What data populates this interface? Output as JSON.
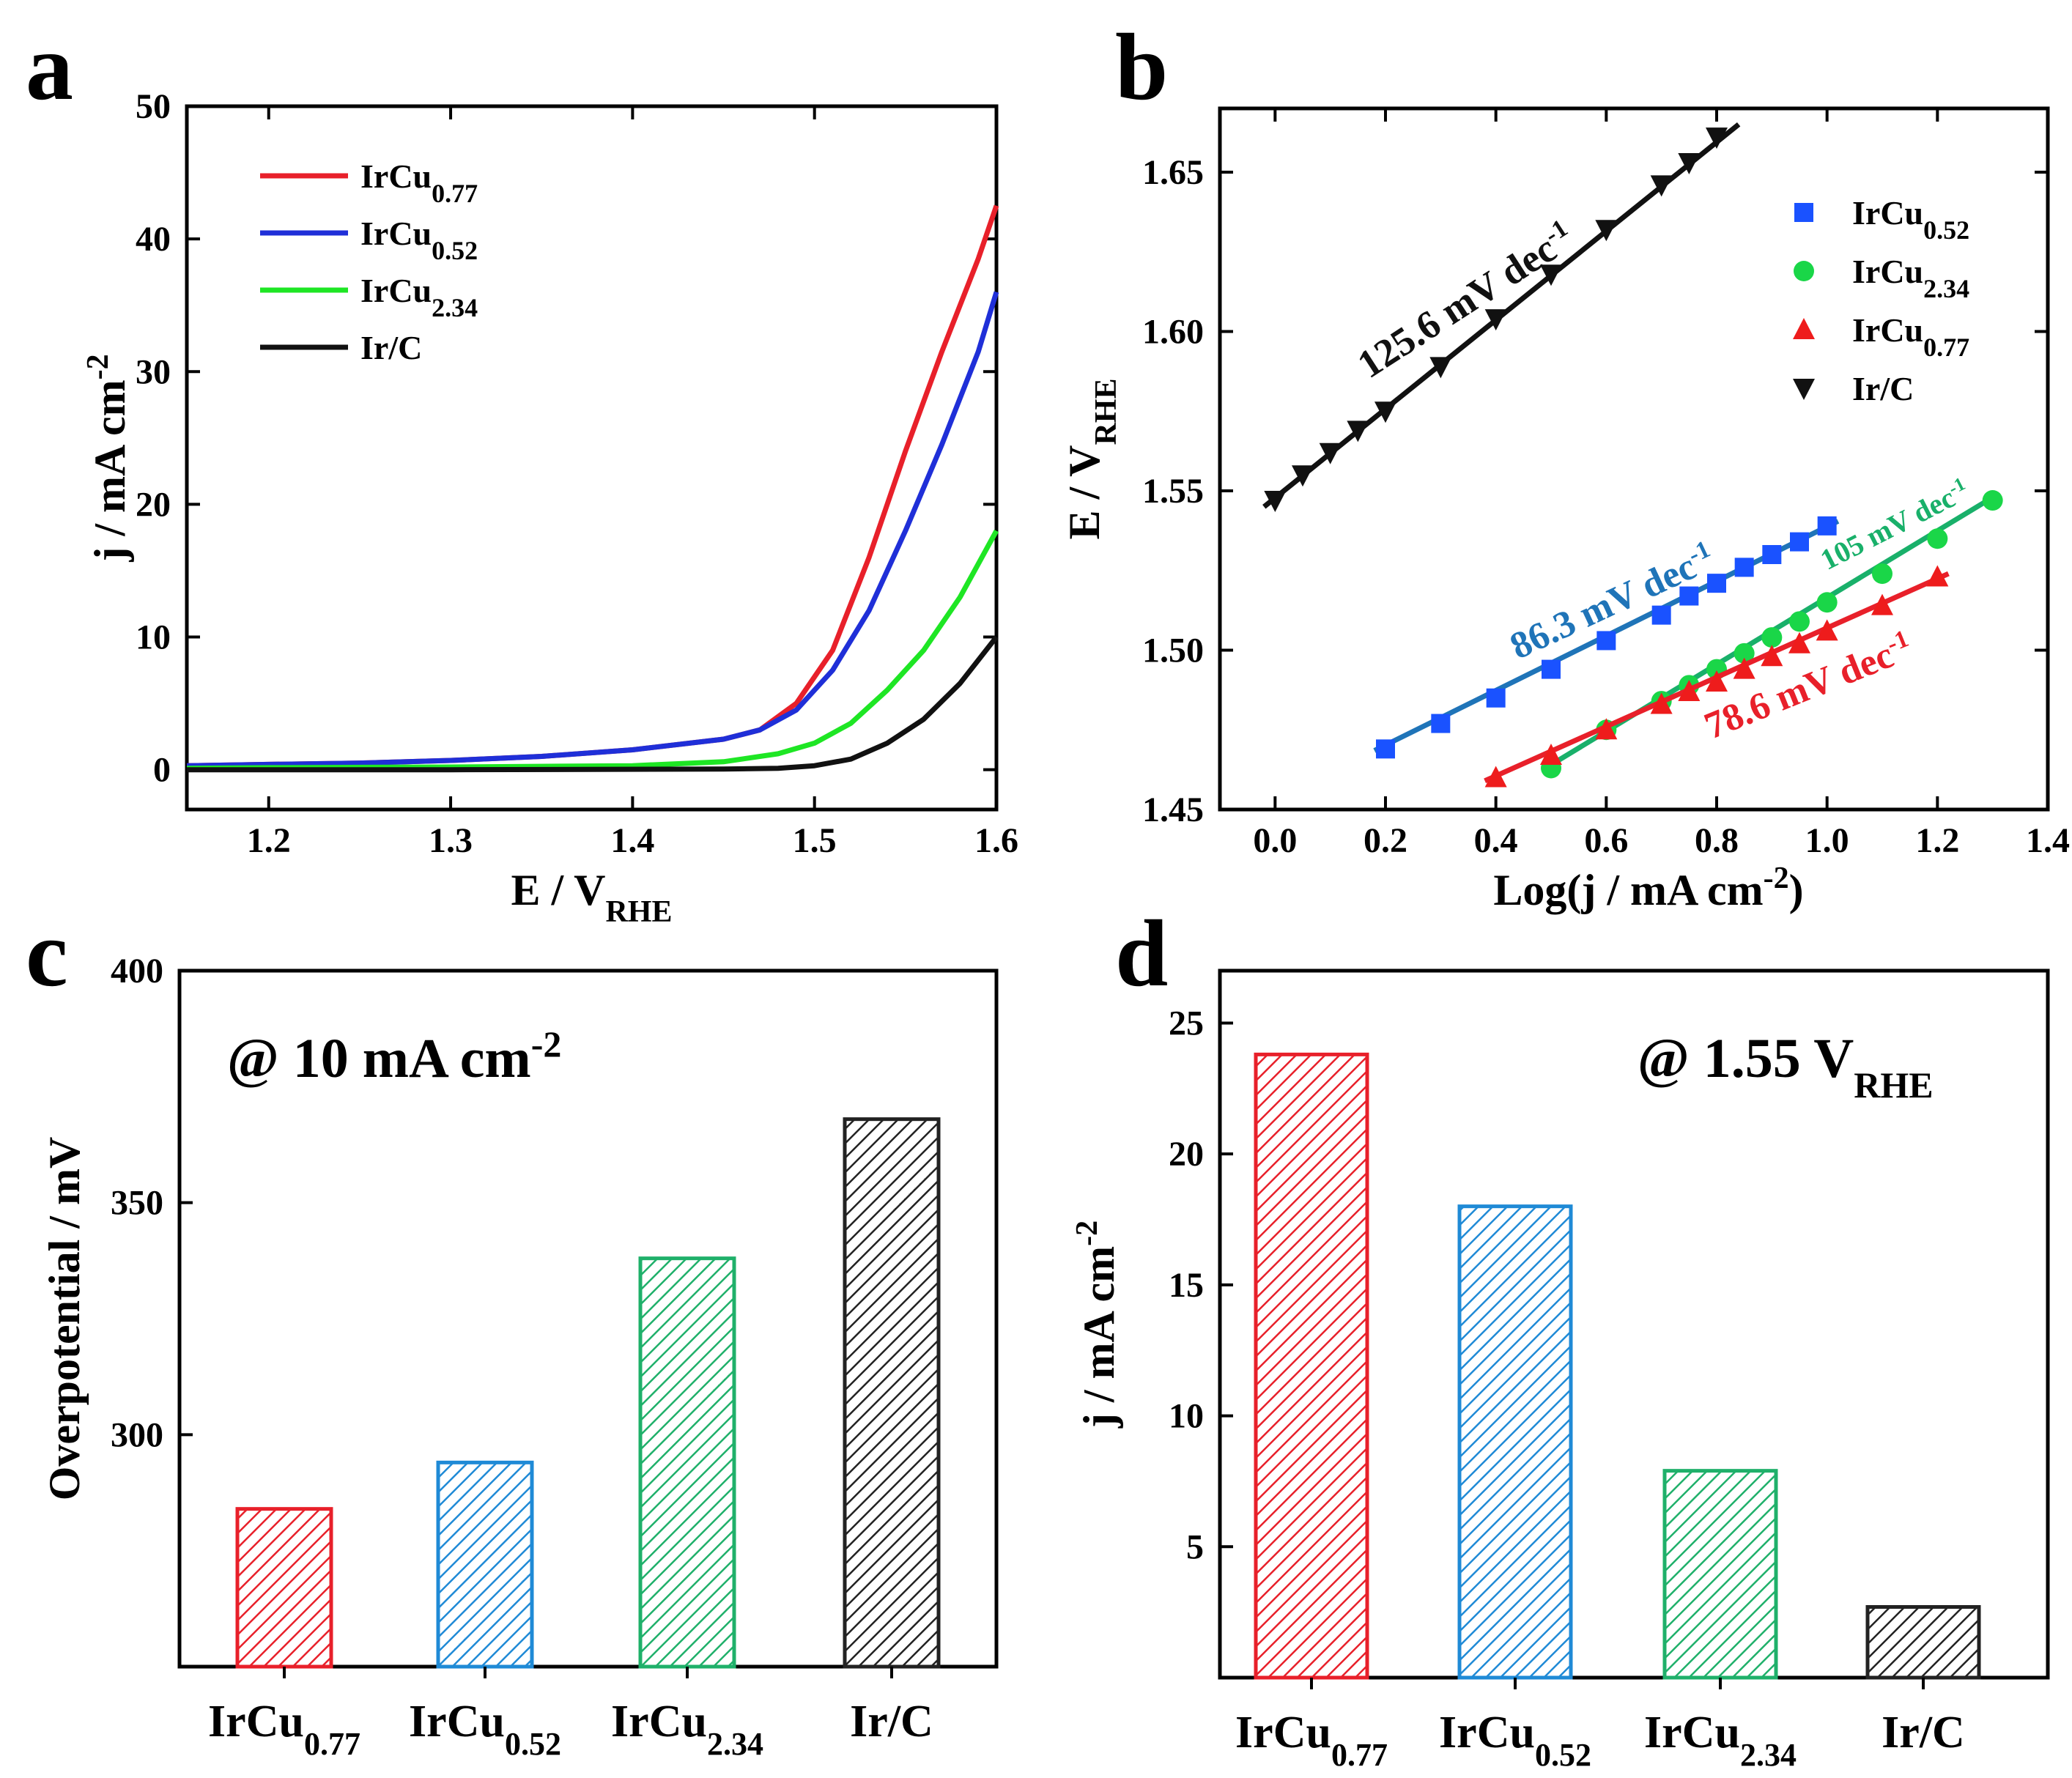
{
  "colors": {
    "red": "#e8202a",
    "blue": "#1f2fd8",
    "green": "#1ee624",
    "black": "#111111",
    "b_blue": "#1a52ff",
    "b_green": "#1ad648",
    "b_red": "#ee1c1c",
    "fit_blue": "#1f74b8",
    "fit_green": "#19b06a",
    "fit_red": "#e8202a",
    "bar_red": "#e8202a",
    "bar_blue": "#1f8ad6",
    "bar_green": "#1fb06a",
    "bar_black": "#222222"
  },
  "chart_data": [
    {
      "id": "a",
      "panel_label": "a",
      "type": "line",
      "xlabel": "E / V",
      "xlabel_sub": "RHE",
      "ylabel": "j / mA cm",
      "ylabel_sup": "-2",
      "xlim": [
        1.155,
        1.6
      ],
      "ylim": [
        -3,
        50
      ],
      "xticks": [
        "1.2",
        "1.3",
        "1.4",
        "1.5",
        "1.6"
      ],
      "yticks": [
        "0",
        "10",
        "20",
        "30",
        "40",
        "50"
      ],
      "legend": [
        {
          "base": "IrCu",
          "sub": "0.77",
          "color_key": "red"
        },
        {
          "base": "IrCu",
          "sub": "0.52",
          "color_key": "blue"
        },
        {
          "base": "IrCu",
          "sub": "2.34",
          "color_key": "green"
        },
        {
          "base": "Ir/C",
          "sub": "",
          "color_key": "black"
        }
      ],
      "series": [
        {
          "name": "IrCu0.77",
          "color_key": "red",
          "points": [
            [
              1.155,
              0.3
            ],
            [
              1.2,
              0.4
            ],
            [
              1.25,
              0.5
            ],
            [
              1.3,
              0.7
            ],
            [
              1.35,
              1.0
            ],
            [
              1.4,
              1.5
            ],
            [
              1.45,
              2.3
            ],
            [
              1.47,
              3.0
            ],
            [
              1.49,
              5.0
            ],
            [
              1.51,
              9.0
            ],
            [
              1.53,
              16.0
            ],
            [
              1.55,
              24.0
            ],
            [
              1.57,
              31.5
            ],
            [
              1.59,
              38.5
            ],
            [
              1.6,
              42.5
            ]
          ]
        },
        {
          "name": "IrCu0.52",
          "color_key": "blue",
          "points": [
            [
              1.155,
              0.3
            ],
            [
              1.2,
              0.4
            ],
            [
              1.25,
              0.5
            ],
            [
              1.3,
              0.7
            ],
            [
              1.35,
              1.0
            ],
            [
              1.4,
              1.5
            ],
            [
              1.45,
              2.3
            ],
            [
              1.47,
              3.0
            ],
            [
              1.49,
              4.5
            ],
            [
              1.51,
              7.5
            ],
            [
              1.53,
              12.0
            ],
            [
              1.55,
              18.0
            ],
            [
              1.57,
              24.5
            ],
            [
              1.59,
              31.5
            ],
            [
              1.6,
              36.0
            ]
          ]
        },
        {
          "name": "IrCu2.34",
          "color_key": "green",
          "points": [
            [
              1.155,
              0.1
            ],
            [
              1.2,
              0.15
            ],
            [
              1.3,
              0.2
            ],
            [
              1.4,
              0.3
            ],
            [
              1.45,
              0.6
            ],
            [
              1.48,
              1.2
            ],
            [
              1.5,
              2.0
            ],
            [
              1.52,
              3.5
            ],
            [
              1.54,
              6.0
            ],
            [
              1.56,
              9.0
            ],
            [
              1.58,
              13.0
            ],
            [
              1.6,
              18.0
            ]
          ]
        },
        {
          "name": "Ir/C",
          "color_key": "black",
          "points": [
            [
              1.155,
              0.0
            ],
            [
              1.3,
              0.0
            ],
            [
              1.45,
              0.05
            ],
            [
              1.48,
              0.1
            ],
            [
              1.5,
              0.3
            ],
            [
              1.52,
              0.8
            ],
            [
              1.54,
              2.0
            ],
            [
              1.56,
              3.8
            ],
            [
              1.58,
              6.5
            ],
            [
              1.6,
              10.0
            ]
          ]
        }
      ]
    },
    {
      "id": "b",
      "panel_label": "b",
      "type": "scatter",
      "xlabel": "Log(j / mA cm",
      "xlabel_sup": "-2",
      "xlabel_end": ")",
      "ylabel": "E / V",
      "ylabel_sub": "RHE",
      "xlim": [
        -0.1,
        1.4
      ],
      "ylim": [
        1.45,
        1.67
      ],
      "xticks": [
        "0.0",
        "0.2",
        "0.4",
        "0.6",
        "0.8",
        "1.0",
        "1.2",
        "1.4"
      ],
      "yticks": [
        "1.45",
        "1.50",
        "1.55",
        "1.60",
        "1.65"
      ],
      "legend": [
        {
          "base": "IrCu",
          "sub": "0.52",
          "marker": "square",
          "color_key": "b_blue"
        },
        {
          "base": "IrCu",
          "sub": "2.34",
          "marker": "circle",
          "color_key": "b_green"
        },
        {
          "base": "IrCu",
          "sub": "0.77",
          "marker": "triangle-up",
          "color_key": "b_red"
        },
        {
          "base": "Ir/C",
          "sub": "",
          "marker": "triangle-down",
          "color_key": "black"
        }
      ],
      "series": [
        {
          "name": "IrCu0.52",
          "marker": "square",
          "color_key": "b_blue",
          "fit_color_key": "fit_blue",
          "fit": [
            [
              0.18,
              1.4685
            ],
            [
              1.02,
              1.5405
            ]
          ],
          "points": [
            [
              0.2,
              1.469
            ],
            [
              0.3,
              1.477
            ],
            [
              0.4,
              1.485
            ],
            [
              0.5,
              1.494
            ],
            [
              0.6,
              1.503
            ],
            [
              0.7,
              1.511
            ],
            [
              0.75,
              1.517
            ],
            [
              0.8,
              1.521
            ],
            [
              0.85,
              1.526
            ],
            [
              0.9,
              1.53
            ],
            [
              0.95,
              1.534
            ],
            [
              1.0,
              1.539
            ]
          ]
        },
        {
          "name": "IrCu2.34",
          "marker": "circle",
          "color_key": "b_green",
          "fit_color_key": "fit_green",
          "fit": [
            [
              0.49,
              1.463
            ],
            [
              1.31,
              1.549
            ]
          ],
          "points": [
            [
              0.5,
              1.463
            ],
            [
              0.6,
              1.475
            ],
            [
              0.7,
              1.484
            ],
            [
              0.75,
              1.489
            ],
            [
              0.8,
              1.494
            ],
            [
              0.85,
              1.499
            ],
            [
              0.9,
              1.504
            ],
            [
              0.95,
              1.509
            ],
            [
              1.0,
              1.515
            ],
            [
              1.1,
              1.524
            ],
            [
              1.2,
              1.535
            ],
            [
              1.3,
              1.547
            ]
          ]
        },
        {
          "name": "IrCu0.77",
          "marker": "triangle-up",
          "color_key": "b_red",
          "fit_color_key": "fit_red",
          "fit": [
            [
              0.38,
              1.459
            ],
            [
              1.22,
              1.524
            ]
          ],
          "points": [
            [
              0.4,
              1.46
            ],
            [
              0.5,
              1.467
            ],
            [
              0.6,
              1.475
            ],
            [
              0.7,
              1.483
            ],
            [
              0.75,
              1.487
            ],
            [
              0.8,
              1.49
            ],
            [
              0.85,
              1.494
            ],
            [
              0.9,
              1.498
            ],
            [
              0.95,
              1.502
            ],
            [
              1.0,
              1.506
            ],
            [
              1.1,
              1.514
            ],
            [
              1.2,
              1.523
            ]
          ]
        },
        {
          "name": "Ir/C",
          "marker": "triangle-down",
          "color_key": "black",
          "fit_color_key": "black",
          "fit": [
            [
              -0.02,
              1.545
            ],
            [
              0.84,
              1.665
            ]
          ],
          "points": [
            [
              0.0,
              1.547
            ],
            [
              0.05,
              1.555
            ],
            [
              0.1,
              1.562
            ],
            [
              0.15,
              1.569
            ],
            [
              0.2,
              1.575
            ],
            [
              0.3,
              1.589
            ],
            [
              0.4,
              1.604
            ],
            [
              0.5,
              1.618
            ],
            [
              0.6,
              1.632
            ],
            [
              0.7,
              1.646
            ],
            [
              0.75,
              1.653
            ],
            [
              0.8,
              1.661
            ]
          ]
        }
      ],
      "annotations": [
        {
          "text": "125.6 mV dec",
          "sup": "-1",
          "color_key": "black",
          "at": [
            0.17,
            1.585
          ],
          "rotate": -33,
          "size": 54
        },
        {
          "text": "86.3 mV dec",
          "sup": "-1",
          "color_key": "fit_blue",
          "at": [
            0.44,
            1.497
          ],
          "rotate": -25,
          "size": 52
        },
        {
          "text": "105 mV dec",
          "sup": "-1",
          "color_key": "fit_green",
          "at": [
            1.0,
            1.525
          ],
          "rotate": -27,
          "size": 40
        },
        {
          "text": "78.6 mV dec",
          "sup": "-1",
          "color_key": "fit_red",
          "at": [
            0.79,
            1.472
          ],
          "rotate": -22,
          "size": 52
        }
      ]
    },
    {
      "id": "c",
      "panel_label": "c",
      "type": "bar",
      "ylabel": "Overpotential / mV",
      "ylim": [
        250,
        400
      ],
      "yticks": [
        "300",
        "350",
        "400"
      ],
      "note": "@ 10 mA cm",
      "note_sup": "-2",
      "categories": [
        {
          "base": "IrCu",
          "sub": "0.77"
        },
        {
          "base": "IrCu",
          "sub": "0.52"
        },
        {
          "base": "IrCu",
          "sub": "2.34"
        },
        {
          "base": "Ir/C",
          "sub": ""
        }
      ],
      "values": [
        284,
        294,
        338,
        368
      ],
      "bar_color_keys": [
        "bar_red",
        "bar_blue",
        "bar_green",
        "bar_black"
      ]
    },
    {
      "id": "d",
      "panel_label": "d",
      "type": "bar",
      "ylabel": "j / mA cm",
      "ylabel_sup": "-2",
      "ylim": [
        0,
        27
      ],
      "yticks": [
        "5",
        "10",
        "15",
        "20",
        "25"
      ],
      "note": "@ 1.55 V",
      "note_sub": "RHE",
      "categories": [
        {
          "base": "IrCu",
          "sub": "0.77"
        },
        {
          "base": "IrCu",
          "sub": "0.52"
        },
        {
          "base": "IrCu",
          "sub": "2.34"
        },
        {
          "base": "Ir/C",
          "sub": ""
        }
      ],
      "values": [
        23.8,
        18.0,
        7.9,
        2.7
      ],
      "bar_color_keys": [
        "bar_red",
        "bar_blue",
        "bar_green",
        "bar_black"
      ]
    }
  ]
}
